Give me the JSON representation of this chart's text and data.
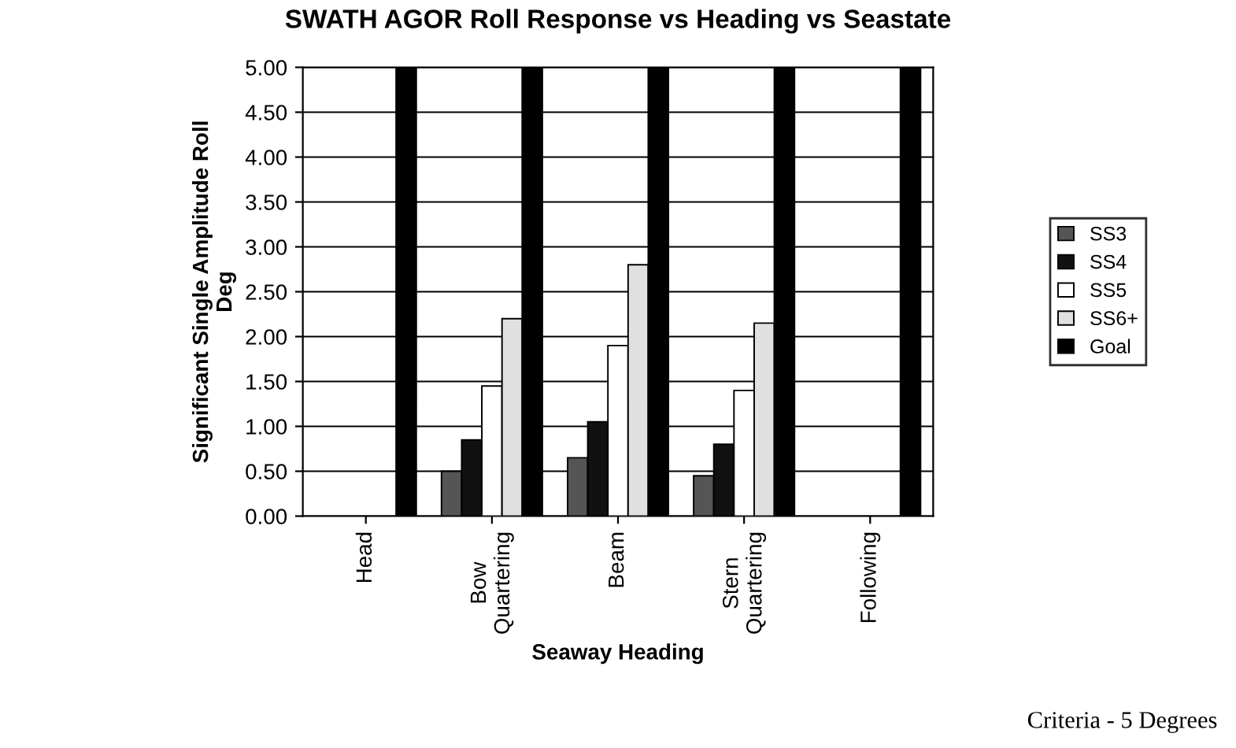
{
  "chart_data": {
    "type": "bar",
    "title": "SWATH AGOR Roll Response vs Heading vs Seastate",
    "xlabel": "Seaway Heading",
    "ylabel": "Significant Single Amplitude Roll\nDeg",
    "categories": [
      "Head",
      "Bow\nQuartering",
      "Beam",
      "Stern\nQuartering",
      "Following"
    ],
    "series": [
      {
        "name": "SS3",
        "color": "#555555",
        "values": [
          0,
          0.5,
          0.65,
          0.45,
          0
        ]
      },
      {
        "name": "SS4",
        "color": "#111111",
        "values": [
          0,
          0.85,
          1.05,
          0.8,
          0
        ]
      },
      {
        "name": "SS5",
        "color": "#ffffff",
        "values": [
          0,
          1.45,
          1.9,
          1.4,
          0
        ]
      },
      {
        "name": "SS6+",
        "color": "#e0e0e0",
        "values": [
          0,
          2.2,
          2.8,
          2.15,
          0
        ]
      },
      {
        "name": "Goal",
        "color": "#000000",
        "values": [
          5,
          5,
          5,
          5,
          5
        ]
      }
    ],
    "ylim": [
      0,
      5
    ],
    "yticks": [
      {
        "value": 0,
        "label": "0.00"
      },
      {
        "value": 0.5,
        "label": "0.50"
      },
      {
        "value": 1,
        "label": "1.00"
      },
      {
        "value": 1.5,
        "label": "1.50"
      },
      {
        "value": 2,
        "label": "2.00"
      },
      {
        "value": 2.5,
        "label": "2.50"
      },
      {
        "value": 3,
        "label": "3.00"
      },
      {
        "value": 3.5,
        "label": "3.50"
      },
      {
        "value": 4,
        "label": "4.00"
      },
      {
        "value": 4.5,
        "label": "4.50"
      },
      {
        "value": 5,
        "label": "5.00"
      }
    ],
    "grid": "y",
    "legend": "right",
    "annotations": [
      "Criteria - 5 Degrees"
    ]
  }
}
